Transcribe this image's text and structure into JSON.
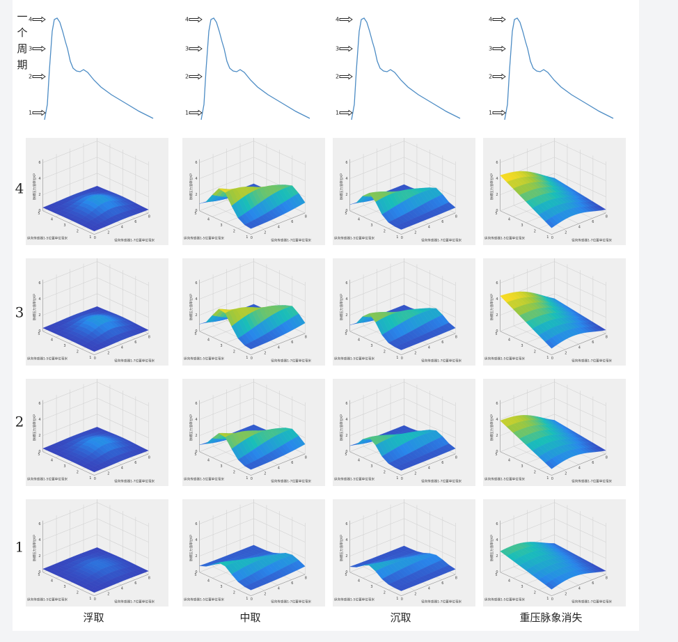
{
  "sidebar_label": [
    "一",
    "个",
    "周",
    "期"
  ],
  "waveform_markers": [
    "1",
    "2",
    "3",
    "4"
  ],
  "row_labels": [
    "4",
    "3",
    "2",
    "1"
  ],
  "column_labels": [
    "浮取",
    "中取",
    "沉取",
    "重压脉象消失"
  ],
  "surface_axes": {
    "z_label": "脉搏压力值单位KP",
    "y_label": "纵向传感器1-5位置单位毫米",
    "x_label": "径向传感器1-7位置单位毫米",
    "zticks": [
      0,
      2,
      4,
      6
    ],
    "yticks": [
      1,
      2,
      3,
      4,
      5
    ],
    "xticks": [
      0,
      2,
      4,
      6,
      8
    ]
  }
}
